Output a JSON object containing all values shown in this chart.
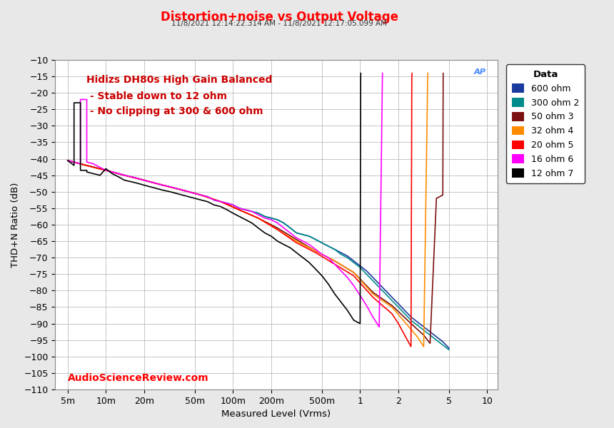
{
  "title": "Distortion+noise vs Output Voltage",
  "subtitle": "11/8/2021 12:14:22.314 AM - 11/8/2021 12:17:05.099 AM",
  "xlabel": "Measured Level (Vrms)",
  "ylabel": "THD+N Ratio (dB)",
  "annotation_line1": "Hidizs DH80s High Gain Balanced",
  "annotation_line2": " - Stable down to 12 ohm",
  "annotation_line3": " - No clipping at 300 & 600 ohm",
  "watermark": "AudioScienceReview.com",
  "xlim": [
    0.004,
    12.0
  ],
  "ylim": [
    -110,
    -10
  ],
  "yticks": [
    -110,
    -105,
    -100,
    -95,
    -90,
    -85,
    -80,
    -75,
    -70,
    -65,
    -60,
    -55,
    -50,
    -45,
    -40,
    -35,
    -30,
    -25,
    -20,
    -15,
    -10
  ],
  "xtick_positions": [
    0.005,
    0.01,
    0.02,
    0.05,
    0.1,
    0.2,
    0.5,
    1,
    2,
    5,
    10
  ],
  "xtick_labels": [
    "5m",
    "10m",
    "20m",
    "50m",
    "100m",
    "200m",
    "500m",
    "1",
    "2",
    "5",
    "10"
  ],
  "series": [
    {
      "label": "600 ohm",
      "color": "#1a3a9e",
      "x": [
        0.005,
        0.0056,
        0.0063,
        0.007,
        0.008,
        0.009,
        0.01,
        0.0112,
        0.0126,
        0.014,
        0.016,
        0.018,
        0.02,
        0.025,
        0.028,
        0.032,
        0.04,
        0.05,
        0.056,
        0.063,
        0.071,
        0.08,
        0.09,
        0.1,
        0.112,
        0.126,
        0.141,
        0.158,
        0.178,
        0.2,
        0.224,
        0.251,
        0.282,
        0.316,
        0.355,
        0.398,
        0.447,
        0.501,
        0.562,
        0.631,
        0.708,
        0.794,
        0.891,
        1.0,
        1.122,
        1.259,
        1.413,
        1.585,
        1.778,
        2.0,
        2.239,
        2.512,
        2.818,
        3.162,
        3.548,
        3.981,
        4.467,
        5.012
      ],
      "y": [
        -40.5,
        -41,
        -41.5,
        -42,
        -42.5,
        -43,
        -43.5,
        -44,
        -44.5,
        -45,
        -45.5,
        -46,
        -46.5,
        -47.5,
        -48,
        -48.5,
        -49.5,
        -50.5,
        -51,
        -51.5,
        -52.5,
        -53,
        -53.5,
        -54,
        -55,
        -55.5,
        -56,
        -56.5,
        -57.5,
        -58,
        -58.5,
        -59.5,
        -61,
        -62.5,
        -63,
        -63.5,
        -64.5,
        -65.5,
        -66.5,
        -67.5,
        -68.5,
        -69.5,
        -71,
        -72.5,
        -74,
        -76,
        -78,
        -80,
        -82,
        -84,
        -86,
        -88,
        -89.5,
        -91,
        -92.5,
        -94,
        -95.5,
        -97.5
      ]
    },
    {
      "label": "300 ohm 2",
      "color": "#008B8B",
      "x": [
        0.005,
        0.0056,
        0.0063,
        0.007,
        0.008,
        0.009,
        0.01,
        0.0112,
        0.0126,
        0.014,
        0.016,
        0.018,
        0.02,
        0.025,
        0.028,
        0.032,
        0.04,
        0.05,
        0.056,
        0.063,
        0.071,
        0.08,
        0.09,
        0.1,
        0.112,
        0.126,
        0.141,
        0.158,
        0.178,
        0.2,
        0.224,
        0.251,
        0.282,
        0.316,
        0.355,
        0.398,
        0.447,
        0.501,
        0.562,
        0.631,
        0.708,
        0.794,
        0.891,
        1.0,
        1.122,
        1.259,
        1.413,
        1.585,
        1.778,
        2.0,
        2.239,
        2.512,
        2.818,
        3.162,
        3.548,
        3.981,
        4.467,
        5.012
      ],
      "y": [
        -40.5,
        -41,
        -41.5,
        -42,
        -42.5,
        -43,
        -43.5,
        -44,
        -44.5,
        -45,
        -45.5,
        -46,
        -46.5,
        -47.5,
        -48,
        -48.5,
        -49.5,
        -50.5,
        -51,
        -51.5,
        -52.5,
        -53,
        -53.5,
        -54,
        -55,
        -55.5,
        -56,
        -56.5,
        -57.5,
        -58,
        -58.5,
        -59.5,
        -61,
        -62.5,
        -63,
        -63.5,
        -64.5,
        -65.5,
        -66.5,
        -67.5,
        -69,
        -70,
        -71.5,
        -73,
        -75,
        -77,
        -79,
        -81,
        -83,
        -85,
        -87,
        -89,
        -90.5,
        -92,
        -93.5,
        -95,
        -96.5,
        -98
      ]
    },
    {
      "label": "50 ohm 3",
      "color": "#7B1010",
      "x": [
        0.005,
        0.007,
        0.01,
        0.014,
        0.02,
        0.028,
        0.04,
        0.056,
        0.08,
        0.112,
        0.158,
        0.224,
        0.316,
        0.447,
        0.631,
        0.891,
        1.259,
        1.778,
        2.512,
        3.162,
        3.548,
        3.981,
        4.467,
        4.47,
        4.5
      ],
      "y": [
        -40.5,
        -42,
        -43.5,
        -45,
        -46.5,
        -48,
        -49.5,
        -51,
        -53,
        -55.5,
        -58,
        -61,
        -64.5,
        -68,
        -71,
        -74.5,
        -80.5,
        -84.5,
        -90,
        -93.5,
        -96,
        -52,
        -51,
        -50,
        -14
      ]
    },
    {
      "label": "32 ohm 4",
      "color": "#FF8C00",
      "x": [
        0.005,
        0.007,
        0.01,
        0.014,
        0.02,
        0.028,
        0.04,
        0.056,
        0.08,
        0.112,
        0.158,
        0.224,
        0.316,
        0.447,
        0.631,
        0.891,
        1.259,
        1.778,
        2.239,
        2.818,
        3.162,
        3.4,
        3.41,
        3.42
      ],
      "y": [
        -40.5,
        -42,
        -43.5,
        -45,
        -46.5,
        -48,
        -49.5,
        -51,
        -53,
        -55.5,
        -58,
        -61.5,
        -65,
        -68,
        -71,
        -74.5,
        -81,
        -85,
        -89.5,
        -94,
        -97,
        -15,
        -14,
        -14
      ]
    },
    {
      "label": "20 ohm 5",
      "color": "#FF0000",
      "x": [
        0.005,
        0.007,
        0.01,
        0.014,
        0.02,
        0.028,
        0.04,
        0.056,
        0.08,
        0.112,
        0.158,
        0.224,
        0.316,
        0.447,
        0.631,
        0.891,
        1.259,
        1.778,
        2.0,
        2.239,
        2.512,
        2.55,
        2.56
      ],
      "y": [
        -40.5,
        -42,
        -43.5,
        -45,
        -46.5,
        -48,
        -49.5,
        -51,
        -53,
        -55.5,
        -58,
        -61.5,
        -65.5,
        -68.5,
        -72,
        -75.5,
        -82,
        -87,
        -90,
        -93.5,
        -97,
        -15,
        -14
      ]
    },
    {
      "label": "16 ohm 6",
      "color": "#FF00FF",
      "x": [
        0.005,
        0.00631,
        0.00631,
        0.00708,
        0.00708,
        0.00794,
        0.01,
        0.01122,
        0.01259,
        0.014,
        0.016,
        0.018,
        0.02,
        0.025,
        0.028,
        0.032,
        0.04,
        0.05,
        0.056,
        0.063,
        0.071,
        0.08,
        0.09,
        0.1,
        0.112,
        0.126,
        0.141,
        0.158,
        0.178,
        0.2,
        0.224,
        0.251,
        0.282,
        0.316,
        0.355,
        0.398,
        0.447,
        0.501,
        0.562,
        0.631,
        0.708,
        0.794,
        0.891,
        1.0,
        1.122,
        1.259,
        1.413,
        1.497,
        1.498,
        1.499
      ],
      "y": [
        -40.5,
        -41.5,
        -22,
        -22,
        -41,
        -41.5,
        -43.5,
        -44,
        -44.5,
        -45,
        -45.5,
        -46,
        -46.5,
        -47.5,
        -48,
        -48.5,
        -49.5,
        -50.5,
        -51,
        -51.5,
        -52.5,
        -53,
        -53.5,
        -54,
        -55,
        -55.5,
        -56,
        -57,
        -58,
        -58.5,
        -59.5,
        -61,
        -62.5,
        -64,
        -65,
        -66,
        -67.5,
        -69,
        -70,
        -72,
        -74,
        -76,
        -78.5,
        -81.5,
        -84.5,
        -88,
        -91,
        -15,
        -14,
        -14
      ]
    },
    {
      "label": "12 ohm 7",
      "color": "#000000",
      "x": [
        0.005,
        0.00562,
        0.00562,
        0.00631,
        0.00631,
        0.00708,
        0.00708,
        0.00794,
        0.009,
        0.01,
        0.0112,
        0.0126,
        0.014,
        0.016,
        0.018,
        0.02,
        0.025,
        0.028,
        0.032,
        0.04,
        0.05,
        0.056,
        0.063,
        0.071,
        0.08,
        0.09,
        0.1,
        0.112,
        0.126,
        0.141,
        0.158,
        0.178,
        0.2,
        0.224,
        0.251,
        0.282,
        0.316,
        0.355,
        0.398,
        0.447,
        0.501,
        0.562,
        0.631,
        0.708,
        0.794,
        0.891,
        1.0,
        1.01,
        1.012
      ],
      "y": [
        -40.5,
        -42,
        -23,
        -23,
        -43.5,
        -43.5,
        -44,
        -44.5,
        -45,
        -43,
        -44.5,
        -45.5,
        -46.5,
        -47,
        -47.5,
        -48,
        -49,
        -49.5,
        -50,
        -51,
        -52,
        -52.5,
        -53,
        -54,
        -54.5,
        -55.5,
        -56.5,
        -57.5,
        -58.5,
        -59.5,
        -61,
        -62.5,
        -63.5,
        -65,
        -66,
        -67,
        -68.5,
        -70,
        -71.5,
        -73.5,
        -75.5,
        -78,
        -81,
        -83.5,
        -86,
        -89,
        -90,
        -15,
        -14
      ]
    }
  ],
  "legend_title": "Data",
  "bg_color": "#e8e8e8",
  "plot_bg": "#ffffff",
  "title_color": "#FF0000",
  "annotation_color": "#CC0000",
  "watermark_color": "#FF0000",
  "ap_logo_color": "#4488FF"
}
